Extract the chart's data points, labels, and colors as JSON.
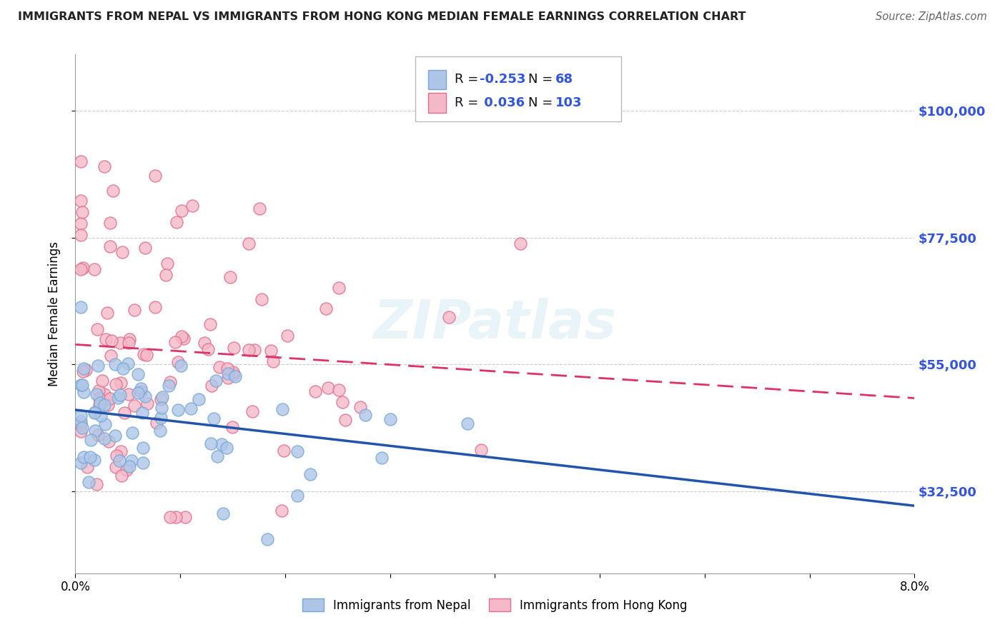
{
  "title": "IMMIGRANTS FROM NEPAL VS IMMIGRANTS FROM HONG KONG MEDIAN FEMALE EARNINGS CORRELATION CHART",
  "source": "Source: ZipAtlas.com",
  "ylabel": "Median Female Earnings",
  "xmin": 0.0,
  "xmax": 0.08,
  "ymin": 18000,
  "ymax": 110000,
  "ytick_vals": [
    32500,
    55000,
    77500,
    100000
  ],
  "ytick_labels": [
    "$32,500",
    "$55,000",
    "$77,500",
    "$100,000"
  ],
  "nepal_face": "#adc6e8",
  "nepal_edge": "#7aa8d4",
  "hk_face": "#f5b8c8",
  "hk_edge": "#e07090",
  "trend_nepal": "#2255aa",
  "trend_hk": "#dd3366",
  "R_nepal": -0.253,
  "N_nepal": 68,
  "R_hk": 0.036,
  "N_hk": 103,
  "label_blue": "#3355dd",
  "watermark": "ZIPatlas",
  "bg_color": "#ffffff",
  "grid_color": "#cccccc"
}
